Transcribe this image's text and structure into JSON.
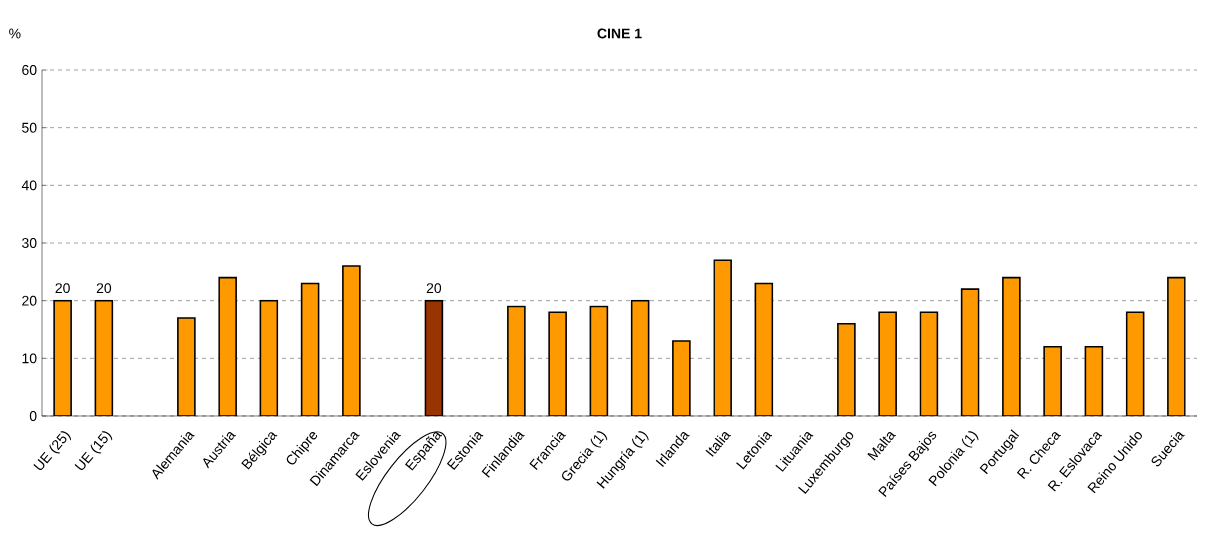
{
  "chart_data": {
    "type": "bar",
    "title": "CINE 1",
    "ylabel": "%",
    "categories": [
      "UE (25)",
      "UE (15)",
      null,
      "Alemania",
      "Austria",
      "Bélgica",
      "Chipre",
      "Dinamarca",
      "Eslovenia",
      "España",
      "Estonia",
      "Finlandia",
      "Francia",
      "Grecia (1)",
      "Hungría (1)",
      "Irlanda",
      "Italia",
      "Letonia",
      "Lituania",
      "Luxemburgo",
      "Malta",
      "Países Bajos",
      "Polonia (1)",
      "Portugal",
      "R. Checa",
      "R. Eslovaca",
      "Reino Unido",
      "Suecia"
    ],
    "values": [
      20,
      20,
      null,
      17,
      24,
      20,
      23,
      26,
      null,
      20,
      null,
      19,
      18,
      19,
      20,
      13,
      27,
      23,
      null,
      16,
      18,
      18,
      22,
      24,
      12,
      12,
      18,
      24
    ],
    "colors": [
      "#ff9900",
      "#ff9900",
      "#ff9900",
      "#ff9900",
      "#ff9900",
      "#ff9900",
      "#ff9900",
      "#ff9900",
      "#ff9900",
      "#993300",
      "#ff9900",
      "#ff9900",
      "#ff9900",
      "#ff9900",
      "#ff9900",
      "#ff9900",
      "#ff9900",
      "#ff9900",
      "#ff9900",
      "#ff9900",
      "#ff9900",
      "#ff9900",
      "#ff9900",
      "#ff9900",
      "#ff9900",
      "#ff9900",
      "#ff9900",
      "#ff9900"
    ],
    "value_labels": [
      "20",
      "20",
      null,
      null,
      null,
      null,
      null,
      null,
      null,
      "20",
      null,
      null,
      null,
      null,
      null,
      null,
      null,
      null,
      null,
      null,
      null,
      null,
      null,
      null,
      null,
      null,
      null,
      null
    ],
    "ylim": [
      0,
      60
    ],
    "yticks": [
      0,
      10,
      20,
      30,
      40,
      50,
      60
    ],
    "grid": "y"
  }
}
